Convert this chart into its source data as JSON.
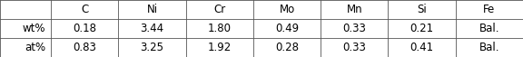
{
  "columns": [
    "",
    "C",
    "Ni",
    "Cr",
    "Mo",
    "Mn",
    "Si",
    "Fe"
  ],
  "rows": [
    [
      "wt%",
      "0.18",
      "3.44",
      "1.80",
      "0.49",
      "0.33",
      "0.21",
      "Bal."
    ],
    [
      "at%",
      "0.83",
      "3.25",
      "1.92",
      "0.28",
      "0.33",
      "0.41",
      "Bal."
    ]
  ],
  "figsize": [
    5.76,
    0.63
  ],
  "dpi": 100,
  "background_color": "#ffffff",
  "font_size": 8.5,
  "line_color": "#555555",
  "line_width": 0.6
}
